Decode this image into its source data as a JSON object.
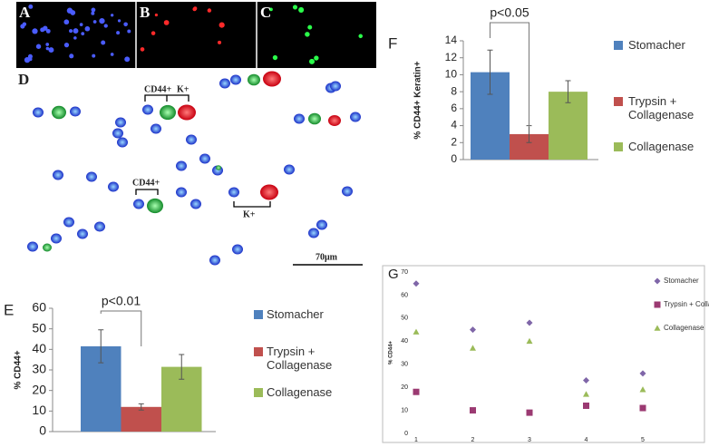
{
  "panel_labels": [
    "A",
    "B",
    "C",
    "D",
    "E",
    "F",
    "G"
  ],
  "micrograph": {
    "annotations": [
      "CD44+",
      "K+",
      "CD44+",
      "K+"
    ],
    "scale_bar": "70μm"
  },
  "chart_data": [
    {
      "type": "bar",
      "panel": "F",
      "ylabel": "% CD44+ Keratin+",
      "categories": [
        "Stomacher",
        "Trypsin + Collagenase",
        "Collagenase"
      ],
      "values": [
        10.3,
        3.0,
        8.0
      ],
      "errors": [
        2.6,
        1.0,
        1.3
      ],
      "colors": [
        "#4f81bd",
        "#c0504d",
        "#9bbb59"
      ],
      "ylim": [
        0,
        14
      ],
      "yticks": [
        0,
        2,
        4,
        6,
        8,
        10,
        12,
        14
      ],
      "annotation": "p<0.05"
    },
    {
      "type": "bar",
      "panel": "E",
      "ylabel": "% CD44+",
      "categories": [
        "Stomacher",
        "Trypsin + Collagenase",
        "Collagenase"
      ],
      "values": [
        41.5,
        12,
        31.5
      ],
      "errors": [
        8,
        1.5,
        6
      ],
      "colors": [
        "#4f81bd",
        "#c0504d",
        "#9bbb59"
      ],
      "ylim": [
        0,
        60
      ],
      "yticks": [
        0,
        10,
        20,
        30,
        40,
        50,
        60
      ],
      "annotation": "p<0.01"
    },
    {
      "type": "scatter",
      "panel": "G",
      "ylabel": "% CD44+",
      "x": [
        1,
        2,
        3,
        4,
        5
      ],
      "series": [
        {
          "name": "Stomacher",
          "color": "#7f66a8",
          "marker": "diamond",
          "values": [
            65,
            45,
            48,
            23,
            26
          ]
        },
        {
          "name": "Trypsin + Collagenase",
          "color": "#9b3a72",
          "marker": "square",
          "values": [
            18,
            10,
            9,
            12,
            11
          ]
        },
        {
          "name": "Collagenase",
          "color": "#9bbb59",
          "marker": "triangle",
          "values": [
            44,
            37,
            40,
            17,
            19
          ]
        }
      ],
      "xlim": [
        1,
        5
      ],
      "xticks": [
        1,
        2,
        3,
        4,
        5
      ],
      "ylim": [
        0,
        70
      ],
      "yticks": [
        0,
        10,
        20,
        30,
        40,
        50,
        60,
        70
      ]
    }
  ]
}
